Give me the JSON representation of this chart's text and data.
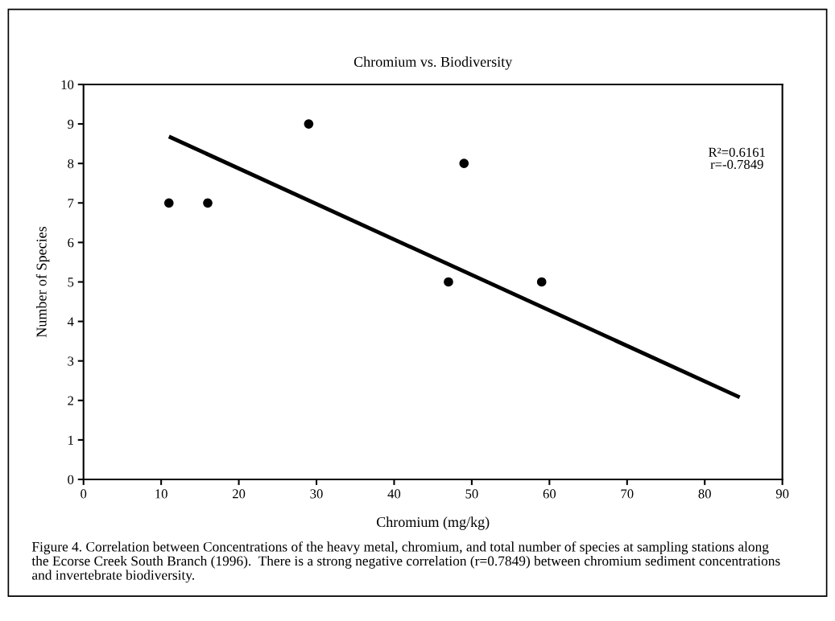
{
  "chart_data": {
    "type": "scatter",
    "title": "Chromium vs. Biodiversity",
    "xlabel": "Chromium (mg/kg)",
    "ylabel": "Number of Species",
    "series": [
      {
        "color": "#000000",
        "marker": "circle",
        "x": [
          11,
          16,
          29,
          47,
          49,
          59
        ],
        "values": [
          7,
          7,
          9,
          5,
          8,
          5
        ]
      },
      {
        "type": "line",
        "color": "#000000",
        "marker": "none",
        "line_style": "solid",
        "x": [
          11,
          84.5
        ],
        "values": [
          8.68,
          2.08
        ]
      }
    ],
    "xlim": [
      0,
      90
    ],
    "xticks": [
      0,
      10,
      20,
      30,
      40,
      50,
      60,
      70,
      80,
      90
    ],
    "ylim": [
      0,
      10
    ],
    "yticks": [
      0,
      1,
      2,
      3,
      4,
      5,
      6,
      7,
      8,
      9,
      10
    ],
    "grid": false,
    "legend": false,
    "annotations": [
      "R²=0.6161\nr=-0.7849",
      "Figure 4. Correlation between Concentrations of the heavy metal, chromium, and total number of species at sampling stations along the Ecorse Creek South Branch (1996).  There is a strong negative correlation (r=0.7849) between chromium sediment concentrations and invertebrate biodiversity."
    ]
  }
}
